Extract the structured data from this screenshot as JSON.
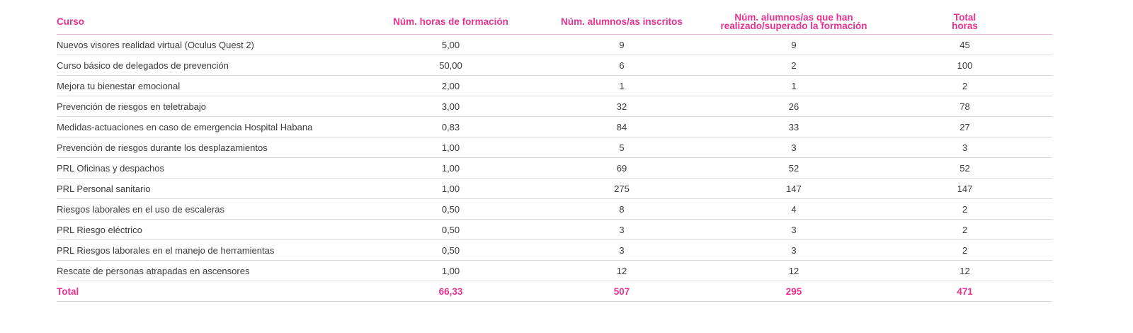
{
  "header": {
    "course": "Curso",
    "hours": "Núm. horas de formación",
    "enrolled": "Núm. alumnos/as inscritos",
    "passed_line1": "Núm. alumnos/as que han",
    "passed_line2": "realizado/superado la formación",
    "total_line1": "Total",
    "total_line2": "horas"
  },
  "rows": [
    {
      "course": "Nuevos visores realidad virtual (Oculus Quest 2)",
      "hours": "5,00",
      "enrolled": "9",
      "passed": "9",
      "total": "45"
    },
    {
      "course": "Curso básico de delegados de prevención",
      "hours": "50,00",
      "enrolled": "6",
      "passed": "2",
      "total": "100"
    },
    {
      "course": "Mejora tu bienestar emocional",
      "hours": "2,00",
      "enrolled": "1",
      "passed": "1",
      "total": "2"
    },
    {
      "course": "Prevención de riesgos en teletrabajo",
      "hours": "3,00",
      "enrolled": "32",
      "passed": "26",
      "total": "78"
    },
    {
      "course": "Medidas-actuaciones en caso de emergencia Hospital Habana",
      "hours": "0,83",
      "enrolled": "84",
      "passed": "33",
      "total": "27"
    },
    {
      "course": "Prevención de riesgos durante los desplazamientos",
      "hours": "1,00",
      "enrolled": "5",
      "passed": "3",
      "total": "3"
    },
    {
      "course": "PRL Oficinas y despachos",
      "hours": "1,00",
      "enrolled": "69",
      "passed": "52",
      "total": "52"
    },
    {
      "course": "PRL Personal sanitario",
      "hours": "1,00",
      "enrolled": "275",
      "passed": "147",
      "total": "147"
    },
    {
      "course": "Riesgos laborales en el uso de escaleras",
      "hours": "0,50",
      "enrolled": "8",
      "passed": "4",
      "total": "2"
    },
    {
      "course": "PRL Riesgo eléctrico",
      "hours": "0,50",
      "enrolled": "3",
      "passed": "3",
      "total": "2"
    },
    {
      "course": "PRL Riesgos laborales en el manejo de herramientas",
      "hours": "0,50",
      "enrolled": "3",
      "passed": "3",
      "total": "2"
    },
    {
      "course": "Rescate de personas atrapadas en ascensores",
      "hours": "1,00",
      "enrolled": "12",
      "passed": "12",
      "total": "12"
    }
  ],
  "totals": {
    "label": "Total",
    "hours": "66,33",
    "enrolled": "507",
    "passed": "295",
    "total": "471"
  },
  "colors": {
    "accent": "#e6338f",
    "text": "#3a3a3a",
    "row_divider": "#d9d9d9"
  }
}
